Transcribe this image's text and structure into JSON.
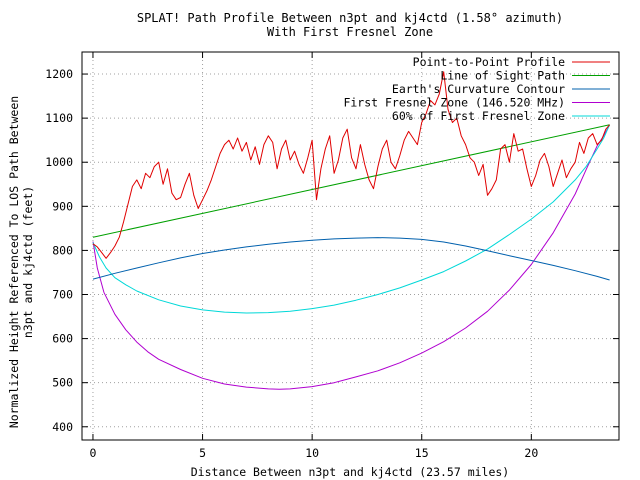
{
  "chart_data": {
    "type": "line",
    "title": [
      "SPLAT! Path Profile Between n3pt and kj4ctd (1.58° azimuth)",
      "With First Fresnel Zone"
    ],
    "xlabel": "Distance Between n3pt and kj4ctd (23.57 miles)",
    "ylabel": [
      "Normalized Height Referenced To LOS Path Between",
      "n3pt and kj4ctd (feet)"
    ],
    "xlim": [
      -0.5,
      24
    ],
    "ylim": [
      370,
      1250
    ],
    "x_ticks": [
      0,
      5,
      10,
      15,
      20
    ],
    "y_ticks": [
      400,
      500,
      600,
      700,
      800,
      900,
      1000,
      1100,
      1200
    ],
    "grid": true,
    "legend_position": "top-right",
    "series": [
      {
        "name": "Point-to-Point Profile",
        "color": "#e00000",
        "x": [
          0,
          0.2,
          0.4,
          0.6,
          0.8,
          1.0,
          1.2,
          1.4,
          1.6,
          1.8,
          2.0,
          2.2,
          2.4,
          2.6,
          2.8,
          3.0,
          3.2,
          3.4,
          3.6,
          3.8,
          4.0,
          4.2,
          4.4,
          4.6,
          4.8,
          5.0,
          5.2,
          5.4,
          5.6,
          5.8,
          6.0,
          6.2,
          6.4,
          6.6,
          6.8,
          7.0,
          7.2,
          7.4,
          7.6,
          7.8,
          8.0,
          8.2,
          8.4,
          8.6,
          8.8,
          9.0,
          9.2,
          9.4,
          9.6,
          9.8,
          10.0,
          10.2,
          10.4,
          10.6,
          10.8,
          11.0,
          11.2,
          11.4,
          11.6,
          11.8,
          12.0,
          12.2,
          12.4,
          12.6,
          12.8,
          13.0,
          13.2,
          13.4,
          13.6,
          13.8,
          14.0,
          14.2,
          14.4,
          14.6,
          14.8,
          15.0,
          15.2,
          15.4,
          15.6,
          15.8,
          16.0,
          16.2,
          16.4,
          16.6,
          16.8,
          17.0,
          17.2,
          17.4,
          17.6,
          17.8,
          18.0,
          18.2,
          18.4,
          18.6,
          18.8,
          19.0,
          19.2,
          19.4,
          19.6,
          19.8,
          20.0,
          20.2,
          20.4,
          20.6,
          20.8,
          21.0,
          21.2,
          21.4,
          21.6,
          21.8,
          22.0,
          22.2,
          22.4,
          22.6,
          22.8,
          23.0,
          23.2,
          23.4,
          23.57
        ],
        "y": [
          815,
          808,
          795,
          782,
          795,
          810,
          830,
          865,
          905,
          945,
          960,
          940,
          975,
          965,
          990,
          1000,
          950,
          985,
          930,
          915,
          920,
          950,
          975,
          925,
          895,
          915,
          935,
          960,
          990,
          1020,
          1040,
          1050,
          1030,
          1055,
          1025,
          1045,
          1005,
          1035,
          995,
          1040,
          1060,
          1045,
          985,
          1030,
          1050,
          1005,
          1025,
          995,
          975,
          1010,
          1050,
          915,
          985,
          1030,
          1060,
          975,
          1005,
          1055,
          1075,
          1010,
          985,
          1040,
          995,
          960,
          940,
          990,
          1030,
          1050,
          1000,
          985,
          1015,
          1050,
          1070,
          1055,
          1040,
          1090,
          1110,
          1140,
          1130,
          1155,
          1205,
          1120,
          1090,
          1100,
          1060,
          1040,
          1010,
          1000,
          970,
          995,
          925,
          940,
          960,
          1030,
          1040,
          1000,
          1065,
          1025,
          1030,
          985,
          945,
          970,
          1005,
          1020,
          990,
          945,
          975,
          1005,
          965,
          985,
          1000,
          1045,
          1020,
          1055,
          1065,
          1040,
          1050,
          1075,
          1085
        ]
      },
      {
        "name": "Line of Sight Path",
        "color": "#00a000",
        "x": [
          0,
          23.57
        ],
        "y": [
          830,
          1085
        ]
      },
      {
        "name": "Earth's Curvature Contour",
        "color": "#0060ad",
        "x": [
          0,
          1,
          2,
          3,
          4,
          5,
          6,
          7,
          8,
          9,
          10,
          11,
          12,
          13,
          14,
          15,
          16,
          17,
          18,
          19,
          20,
          21,
          22,
          23,
          23.57
        ],
        "y": [
          735,
          748,
          760,
          772,
          783,
          793,
          801,
          808,
          814,
          819,
          823,
          826,
          828,
          829,
          828,
          825,
          819,
          810,
          799,
          788,
          777,
          766,
          754,
          741,
          733
        ]
      },
      {
        "name": "First Fresnel Zone (146.520 MHz)",
        "color": "#b000d0",
        "x": [
          0,
          0.2,
          0.5,
          1,
          1.5,
          2,
          2.5,
          3,
          4,
          5,
          6,
          7,
          8,
          8.5,
          9,
          10,
          11,
          12,
          13,
          14,
          15,
          16,
          17,
          18,
          19,
          20,
          21,
          22,
          22.5,
          23,
          23.3,
          23.57
        ],
        "y": [
          820,
          760,
          705,
          655,
          620,
          592,
          570,
          553,
          530,
          510,
          497,
          490,
          486,
          485,
          486,
          491,
          500,
          513,
          527,
          545,
          567,
          593,
          624,
          662,
          710,
          768,
          840,
          928,
          983,
          1037,
          1060,
          1085
        ]
      },
      {
        "name": "60% of First Fresnel Zone",
        "color": "#00d8d8",
        "x": [
          0,
          0.3,
          0.6,
          1,
          1.5,
          2,
          3,
          4,
          5,
          6,
          7,
          8,
          9,
          10,
          11,
          12,
          13,
          14,
          15,
          16,
          17,
          18,
          19,
          20,
          21,
          22,
          22.5,
          23,
          23.3,
          23.57
        ],
        "y": [
          818,
          785,
          760,
          738,
          722,
          708,
          688,
          674,
          665,
          660,
          658,
          659,
          662,
          668,
          676,
          687,
          700,
          715,
          733,
          752,
          776,
          803,
          836,
          871,
          910,
          960,
          990,
          1030,
          1055,
          1085
        ]
      }
    ]
  }
}
